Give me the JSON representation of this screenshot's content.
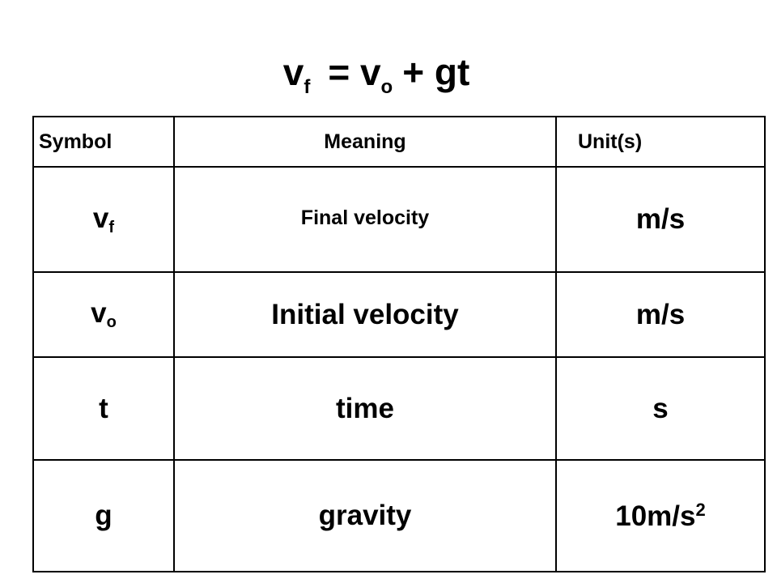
{
  "title": [
    "v",
    "f",
    "= v",
    "o",
    "+ gt"
  ],
  "table": {
    "header": [
      "Symbol",
      "Meaning",
      "Unit(s)"
    ],
    "rows": [
      {
        "symbol": "v",
        "symbol_sub": "f",
        "meaning": "Final velocity",
        "unit": "m/s"
      },
      {
        "symbol": "v",
        "symbol_sub": "o",
        "meaning": "Initial velocity",
        "unit": "m/s"
      },
      {
        "symbol": "t",
        "meaning": "time",
        "unit": "s"
      },
      {
        "symbol": "g",
        "meaning": "gravity",
        "unit": "10m/s",
        "unit_sup": "2"
      }
    ]
  }
}
